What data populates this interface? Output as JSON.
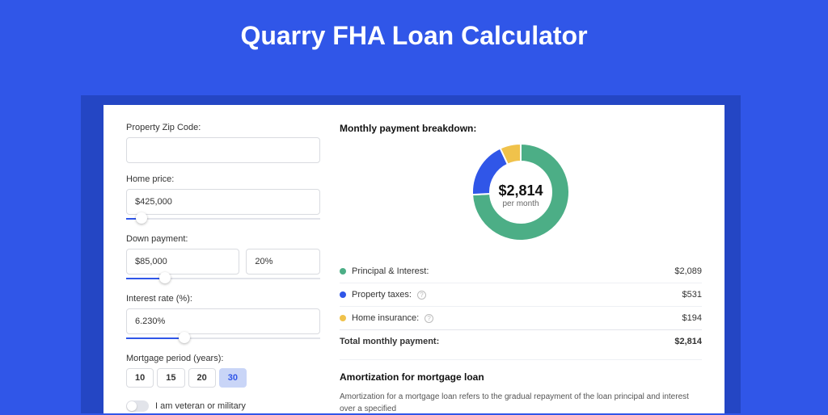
{
  "page": {
    "title": "Quarry FHA Loan Calculator",
    "background_color": "#3056e8",
    "card_shadow_color": "#2446c4",
    "card_background": "#ffffff"
  },
  "form": {
    "zip": {
      "label": "Property Zip Code:",
      "value": ""
    },
    "home_price": {
      "label": "Home price:",
      "value": "$425,000",
      "slider_pct": 8
    },
    "down_payment": {
      "label": "Down payment:",
      "amount": "$85,000",
      "pct": "20%",
      "slider_pct": 20
    },
    "interest": {
      "label": "Interest rate (%):",
      "value": "6.230%",
      "slider_pct": 30
    },
    "period": {
      "label": "Mortgage period (years):",
      "options": [
        "10",
        "15",
        "20",
        "30"
      ],
      "active_index": 3
    },
    "veteran": {
      "label": "I am veteran or military",
      "checked": false
    }
  },
  "breakdown": {
    "title": "Monthly payment breakdown:",
    "donut": {
      "type": "donut",
      "center_amount": "$2,814",
      "center_sub": "per month",
      "slices": [
        {
          "label": "Principal & Interest",
          "value": 2089,
          "color": "#4cae86",
          "deg": 267
        },
        {
          "label": "Property taxes",
          "value": 531,
          "color": "#3056e8",
          "deg": 68
        },
        {
          "label": "Home insurance",
          "value": 194,
          "color": "#f0c24b",
          "deg": 25
        }
      ],
      "background_color": "#ffffff",
      "outer_radius": 60,
      "inner_radius": 38
    },
    "rows": [
      {
        "label": "Principal & Interest:",
        "value": "$2,089",
        "color": "#4cae86",
        "info": false
      },
      {
        "label": "Property taxes:",
        "value": "$531",
        "color": "#3056e8",
        "info": true
      },
      {
        "label": "Home insurance:",
        "value": "$194",
        "color": "#f0c24b",
        "info": true
      }
    ],
    "total": {
      "label": "Total monthly payment:",
      "value": "$2,814"
    }
  },
  "amortization": {
    "title": "Amortization for mortgage loan",
    "text": "Amortization for a mortgage loan refers to the gradual repayment of the loan principal and interest over a specified"
  }
}
